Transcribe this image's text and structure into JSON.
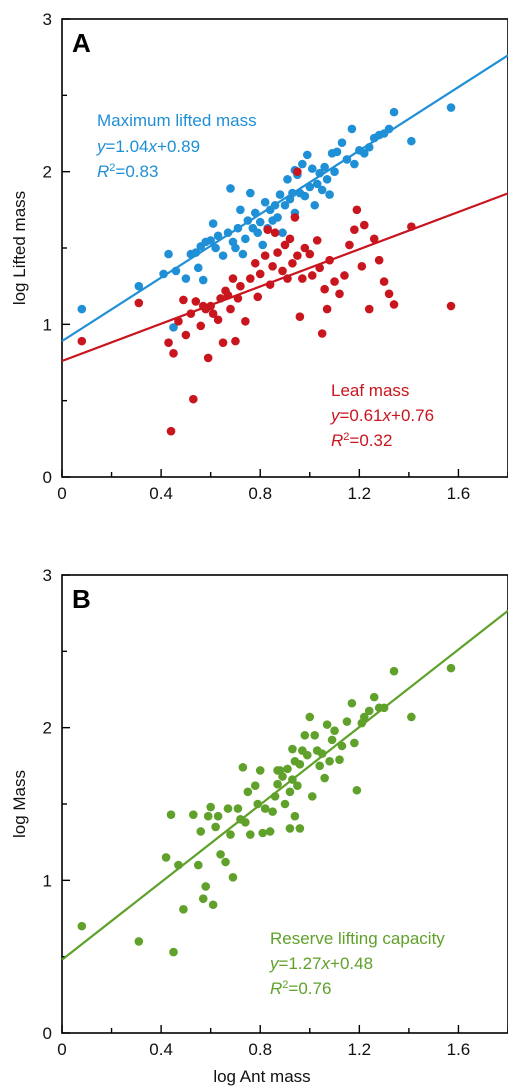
{
  "chart_data": [
    {
      "type": "scatter",
      "panel_label": "A",
      "xlabel": "",
      "ylabel": "log Lifted mass",
      "xlim": [
        0,
        1.8
      ],
      "ylim": [
        0,
        3
      ],
      "x_ticks": [
        "0",
        "0.4",
        "0.8",
        "1.2",
        "1.6"
      ],
      "y_ticks": [
        "0",
        "1",
        "2",
        "3"
      ],
      "grid": false,
      "series": [
        {
          "name": "Maximum lifted mass",
          "color": "#1f8fd6",
          "fit_slope": 1.04,
          "fit_intercept": 0.89,
          "points": [
            [
              0.08,
              1.1
            ],
            [
              0.31,
              1.25
            ],
            [
              0.41,
              1.33
            ],
            [
              0.43,
              1.46
            ],
            [
              0.45,
              0.98
            ],
            [
              0.46,
              1.35
            ],
            [
              0.5,
              1.3
            ],
            [
              0.52,
              1.46
            ],
            [
              0.54,
              1.47
            ],
            [
              0.55,
              1.37
            ],
            [
              0.56,
              1.51
            ],
            [
              0.57,
              1.29
            ],
            [
              0.58,
              1.54
            ],
            [
              0.6,
              1.55
            ],
            [
              0.61,
              1.66
            ],
            [
              0.62,
              1.5
            ],
            [
              0.63,
              1.58
            ],
            [
              0.65,
              1.45
            ],
            [
              0.67,
              1.6
            ],
            [
              0.69,
              1.54
            ],
            [
              0.7,
              1.5
            ],
            [
              0.71,
              1.63
            ],
            [
              0.72,
              1.75
            ],
            [
              0.73,
              1.46
            ],
            [
              0.74,
              1.56
            ],
            [
              0.75,
              1.68
            ],
            [
              0.77,
              1.63
            ],
            [
              0.78,
              1.73
            ],
            [
              0.79,
              1.6
            ],
            [
              0.8,
              1.67
            ],
            [
              0.81,
              1.52
            ],
            [
              0.82,
              1.8
            ],
            [
              0.83,
              1.63
            ],
            [
              0.84,
              1.75
            ],
            [
              0.85,
              1.68
            ],
            [
              0.86,
              1.78
            ],
            [
              0.87,
              1.7
            ],
            [
              0.88,
              1.85
            ],
            [
              0.89,
              1.6
            ],
            [
              0.9,
              1.78
            ],
            [
              0.91,
              1.95
            ],
            [
              0.92,
              1.82
            ],
            [
              0.93,
              1.86
            ],
            [
              0.94,
              1.73
            ],
            [
              0.95,
              1.98
            ],
            [
              0.96,
              1.86
            ],
            [
              0.97,
              2.05
            ],
            [
              0.98,
              1.84
            ],
            [
              0.99,
              2.11
            ],
            [
              1.0,
              1.9
            ],
            [
              1.01,
              2.02
            ],
            [
              1.02,
              1.78
            ],
            [
              1.03,
              1.92
            ],
            [
              1.04,
              1.99
            ],
            [
              1.05,
              1.88
            ],
            [
              1.06,
              2.03
            ],
            [
              1.07,
              1.95
            ],
            [
              1.08,
              1.85
            ],
            [
              1.09,
              2.12
            ],
            [
              1.1,
              2.0
            ],
            [
              1.11,
              2.13
            ],
            [
              1.13,
              2.19
            ],
            [
              1.15,
              2.08
            ],
            [
              1.17,
              2.28
            ],
            [
              1.18,
              2.05
            ],
            [
              1.2,
              2.14
            ],
            [
              1.22,
              2.12
            ],
            [
              1.24,
              2.16
            ],
            [
              1.26,
              2.22
            ],
            [
              1.28,
              2.24
            ],
            [
              1.3,
              2.25
            ],
            [
              1.32,
              2.28
            ],
            [
              1.34,
              2.39
            ],
            [
              1.41,
              2.2
            ],
            [
              1.57,
              2.42
            ],
            [
              0.68,
              1.89
            ],
            [
              0.76,
              1.86
            ],
            [
              0.94,
              2.01
            ]
          ]
        },
        {
          "name": "Leaf mass",
          "color": "#c8151e",
          "fit_slope": 0.61,
          "fit_intercept": 0.76,
          "points": [
            [
              0.08,
              0.89
            ],
            [
              0.31,
              1.14
            ],
            [
              0.43,
              0.88
            ],
            [
              0.44,
              0.3
            ],
            [
              0.45,
              0.81
            ],
            [
              0.47,
              1.02
            ],
            [
              0.49,
              1.16
            ],
            [
              0.5,
              0.93
            ],
            [
              0.52,
              1.07
            ],
            [
              0.53,
              0.51
            ],
            [
              0.54,
              1.15
            ],
            [
              0.56,
              0.99
            ],
            [
              0.57,
              1.12
            ],
            [
              0.58,
              1.1
            ],
            [
              0.59,
              0.78
            ],
            [
              0.6,
              1.12
            ],
            [
              0.61,
              1.07
            ],
            [
              0.63,
              1.03
            ],
            [
              0.64,
              1.17
            ],
            [
              0.65,
              0.88
            ],
            [
              0.66,
              1.22
            ],
            [
              0.68,
              1.1
            ],
            [
              0.69,
              1.3
            ],
            [
              0.7,
              0.89
            ],
            [
              0.71,
              1.17
            ],
            [
              0.72,
              1.25
            ],
            [
              0.74,
              1.02
            ],
            [
              0.76,
              1.3
            ],
            [
              0.78,
              1.4
            ],
            [
              0.79,
              1.18
            ],
            [
              0.8,
              1.33
            ],
            [
              0.82,
              1.45
            ],
            [
              0.84,
              1.26
            ],
            [
              0.85,
              1.38
            ],
            [
              0.86,
              1.6
            ],
            [
              0.87,
              1.47
            ],
            [
              0.89,
              1.35
            ],
            [
              0.9,
              1.52
            ],
            [
              0.91,
              1.3
            ],
            [
              0.92,
              1.56
            ],
            [
              0.93,
              1.4
            ],
            [
              0.94,
              1.7
            ],
            [
              0.95,
              1.45
            ],
            [
              0.96,
              1.05
            ],
            [
              0.97,
              1.3
            ],
            [
              0.98,
              1.5
            ],
            [
              1.0,
              1.46
            ],
            [
              1.01,
              1.32
            ],
            [
              1.03,
              1.55
            ],
            [
              1.04,
              1.37
            ],
            [
              1.05,
              0.94
            ],
            [
              1.06,
              1.23
            ],
            [
              1.07,
              1.1
            ],
            [
              1.08,
              1.42
            ],
            [
              1.1,
              1.28
            ],
            [
              1.12,
              1.2
            ],
            [
              1.14,
              1.32
            ],
            [
              1.16,
              1.52
            ],
            [
              1.18,
              1.62
            ],
            [
              1.19,
              1.75
            ],
            [
              1.21,
              1.38
            ],
            [
              1.22,
              1.65
            ],
            [
              1.24,
              1.1
            ],
            [
              1.26,
              1.56
            ],
            [
              1.28,
              1.42
            ],
            [
              1.3,
              1.28
            ],
            [
              1.32,
              1.2
            ],
            [
              1.34,
              1.13
            ],
            [
              1.41,
              1.64
            ],
            [
              1.57,
              1.12
            ],
            [
              0.95,
              2.0
            ],
            [
              0.67,
              1.19
            ],
            [
              0.83,
              1.62
            ]
          ]
        }
      ],
      "annotations": [
        {
          "lines": [
            "Maximum lifted mass",
            "y=1.04x+0.89",
            "R2=0.83"
          ],
          "color": "#1f8fd6",
          "position": "top-left"
        },
        {
          "lines": [
            "Leaf mass",
            "y=0.61x+0.76",
            "R2=0.32"
          ],
          "color": "#c8151e",
          "position": "bottom-right"
        }
      ]
    },
    {
      "type": "scatter",
      "panel_label": "B",
      "xlabel": "log Ant mass",
      "ylabel": "log Mass",
      "xlim": [
        0,
        1.8
      ],
      "ylim": [
        0,
        3
      ],
      "x_ticks": [
        "0",
        "0.4",
        "0.8",
        "1.2",
        "1.6"
      ],
      "y_ticks": [
        "0",
        "1",
        "2",
        "3"
      ],
      "grid": false,
      "series": [
        {
          "name": "Reserve lifting capacity",
          "color": "#5fa12a",
          "fit_slope": 1.27,
          "fit_intercept": 0.48,
          "points": [
            [
              0.08,
              0.7
            ],
            [
              0.31,
              0.6
            ],
            [
              0.42,
              1.15
            ],
            [
              0.44,
              1.43
            ],
            [
              0.45,
              0.53
            ],
            [
              0.47,
              1.1
            ],
            [
              0.49,
              0.81
            ],
            [
              0.53,
              1.43
            ],
            [
              0.55,
              1.1
            ],
            [
              0.56,
              1.32
            ],
            [
              0.57,
              0.88
            ],
            [
              0.58,
              0.96
            ],
            [
              0.59,
              1.42
            ],
            [
              0.6,
              1.48
            ],
            [
              0.61,
              0.84
            ],
            [
              0.62,
              1.35
            ],
            [
              0.63,
              1.42
            ],
            [
              0.64,
              1.17
            ],
            [
              0.66,
              1.12
            ],
            [
              0.67,
              1.47
            ],
            [
              0.68,
              1.3
            ],
            [
              0.69,
              1.02
            ],
            [
              0.71,
              1.47
            ],
            [
              0.72,
              1.4
            ],
            [
              0.73,
              1.74
            ],
            [
              0.74,
              1.38
            ],
            [
              0.75,
              1.58
            ],
            [
              0.76,
              1.3
            ],
            [
              0.78,
              1.62
            ],
            [
              0.79,
              1.5
            ],
            [
              0.8,
              1.72
            ],
            [
              0.81,
              1.31
            ],
            [
              0.82,
              1.47
            ],
            [
              0.84,
              1.32
            ],
            [
              0.85,
              1.45
            ],
            [
              0.86,
              1.55
            ],
            [
              0.87,
              1.63
            ],
            [
              0.88,
              1.72
            ],
            [
              0.89,
              1.68
            ],
            [
              0.9,
              1.5
            ],
            [
              0.91,
              1.73
            ],
            [
              0.92,
              1.58
            ],
            [
              0.93,
              1.86
            ],
            [
              0.94,
              1.78
            ],
            [
              0.95,
              1.62
            ],
            [
              0.96,
              1.76
            ],
            [
              0.97,
              1.85
            ],
            [
              0.98,
              1.95
            ],
            [
              0.99,
              1.82
            ],
            [
              1.0,
              2.07
            ],
            [
              1.01,
              1.55
            ],
            [
              1.02,
              1.95
            ],
            [
              1.03,
              1.85
            ],
            [
              1.04,
              1.75
            ],
            [
              1.05,
              1.83
            ],
            [
              1.06,
              1.67
            ],
            [
              1.07,
              2.02
            ],
            [
              1.08,
              1.78
            ],
            [
              1.09,
              1.92
            ],
            [
              1.1,
              1.98
            ],
            [
              1.12,
              1.79
            ],
            [
              1.13,
              1.88
            ],
            [
              1.15,
              2.04
            ],
            [
              1.17,
              2.16
            ],
            [
              1.18,
              1.9
            ],
            [
              1.19,
              1.59
            ],
            [
              1.21,
              2.03
            ],
            [
              1.22,
              2.07
            ],
            [
              1.24,
              2.11
            ],
            [
              1.26,
              2.2
            ],
            [
              1.28,
              2.13
            ],
            [
              1.3,
              2.13
            ],
            [
              1.34,
              2.37
            ],
            [
              1.41,
              2.07
            ],
            [
              1.57,
              2.39
            ],
            [
              0.92,
              1.34
            ],
            [
              0.96,
              1.34
            ],
            [
              0.94,
              1.42
            ],
            [
              0.87,
              1.72
            ],
            [
              0.93,
              1.66
            ]
          ]
        }
      ],
      "annotations": [
        {
          "lines": [
            "Reserve lifting capacity",
            "y=1.27x+0.48",
            "R2=0.76"
          ],
          "color": "#5fa12a",
          "position": "bottom-right"
        }
      ]
    }
  ]
}
